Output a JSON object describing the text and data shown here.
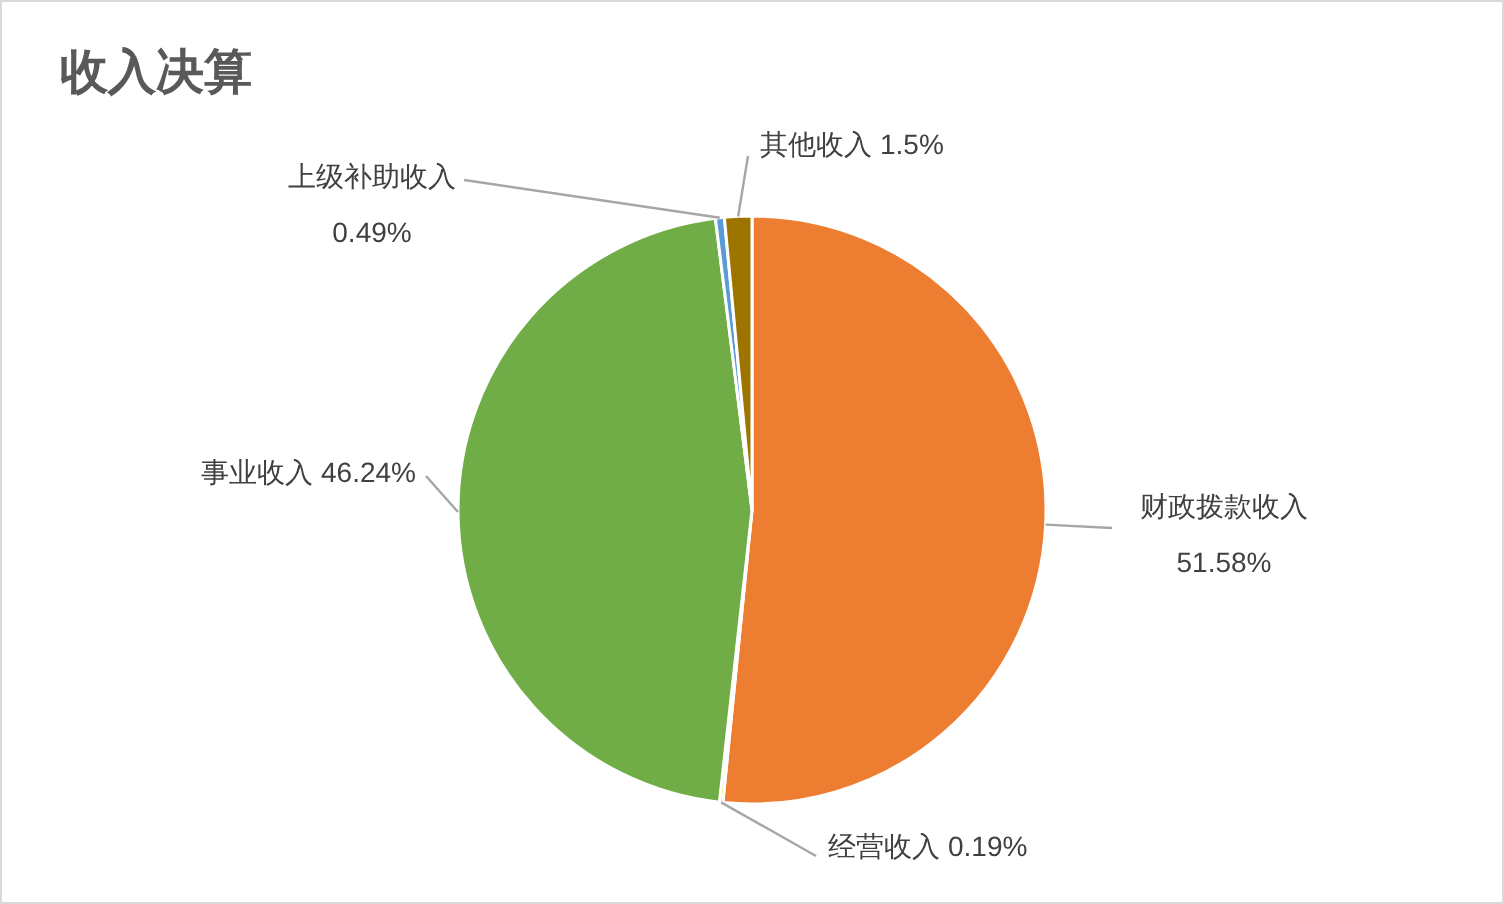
{
  "chart_data": {
    "type": "pie",
    "title": "收入决算",
    "categories": [
      "财政拨款收入",
      "经营收入",
      "事业收入",
      "上级补助收入",
      "其他收入"
    ],
    "values": [
      51.58,
      0.19,
      46.24,
      0.49,
      1.5
    ],
    "colors": [
      "#ed7d31",
      "#ffc000",
      "#70ad47",
      "#5b9bd5",
      "#9e7400"
    ],
    "value_labels": [
      "51.58%",
      "0.19%",
      "46.24%",
      "0.49%",
      "1.5%"
    ]
  }
}
